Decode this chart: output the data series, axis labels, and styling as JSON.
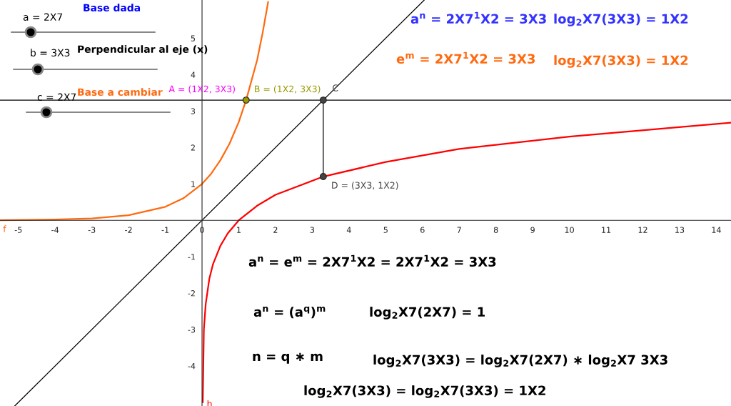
{
  "chart_data": {
    "type": "line",
    "xlim": [
      -5.5,
      14.4
    ],
    "ylim": [
      -5.1,
      6.05
    ],
    "xticks": [
      -5,
      -4,
      -3,
      -2,
      -1,
      0,
      1,
      2,
      3,
      4,
      5,
      6,
      7,
      8,
      9,
      10,
      11,
      12,
      13,
      14
    ],
    "yticks": [
      -4,
      -3,
      -2,
      -1,
      1,
      2,
      3,
      4,
      5
    ],
    "grid": false,
    "legend": false,
    "marker": "none",
    "ref_lines": [
      {
        "axis": "y",
        "value": 3.3,
        "color": "#000000"
      }
    ],
    "series": [
      {
        "color": "#ff6a10",
        "x": [
          -5.5,
          -4,
          -3,
          -2,
          -1,
          -0.5,
          0,
          0.25,
          0.5,
          0.75,
          1,
          1.2,
          1.5,
          1.65,
          1.8
        ],
        "values": [
          0.0,
          0.02,
          0.05,
          0.14,
          0.37,
          0.61,
          1,
          1.28,
          1.65,
          2.11,
          2.7,
          3.3,
          4.4,
          5.15,
          6.0
        ]
      },
      {
        "color": "#ff0000",
        "x": [
          0.02,
          0.05,
          0.1,
          0.2,
          0.3,
          0.5,
          0.7,
          1,
          1.5,
          2,
          3.3,
          5,
          7,
          10,
          14.4
        ],
        "values": [
          -5.0,
          -3.0,
          -2.3,
          -1.6,
          -1.2,
          -0.7,
          -0.36,
          0,
          0.4,
          0.7,
          1.2,
          1.6,
          1.96,
          2.3,
          2.68
        ]
      },
      {
        "color": "#000000",
        "x": [
          -5.1,
          6.05
        ],
        "values": [
          -5.1,
          6.05
        ]
      },
      {
        "color": "#000000",
        "x": [
          3.3,
          3.3
        ],
        "values": [
          1.2,
          3.3
        ]
      },
      {
        "type": "scatter",
        "marker": "circle",
        "colors": [
          "#999900",
          "#444444",
          "#444444"
        ],
        "x": [
          1.2,
          3.3,
          3.3
        ],
        "values": [
          3.3,
          3.3,
          1.2
        ]
      }
    ],
    "annotations": [
      "Base dada",
      "a = 2X7",
      "b = 3X3",
      "Perpendicular al eje (x)",
      "c = 2X7",
      "Base a cambiar",
      "a$^{n}$ = 2X7$^{1}$X2 = 3X3",
      "log$_{2}$X7(3X3) = 1X2",
      "e$^{m}$ = 2X7$^{1}$X2 = 3X3",
      "log$_{2}$X7(3X3) = 1X2",
      "a$^{n}$ = e$^{m}$ = 2X7$^{1}$X2 = 2X7$^{1}$X2 = 3X3",
      "a$^{n}$ = (a$^{q}$)$^{m}$",
      "log$_{2}$X7(2X7) = 1",
      "n = q ∗ m",
      "log$_{2}$X7(3X3) = log$_{2}$X7(2X7) ∗ log$_{2}$X7 3X3",
      "log$_{2}$X7(3X3) = log$_{2}$X7(3X3) = 1X2",
      {
        "text": "A = (1X2, 3X3)",
        "x": 1.2,
        "y": 3.3
      },
      {
        "text": "B = (1X2, 3X3)",
        "x": 1.2,
        "y": 3.3
      },
      {
        "text": "C",
        "x": 3.3,
        "y": 3.3
      },
      {
        "text": "D = (3X3, 1X2)",
        "x": 3.3,
        "y": 1.2
      },
      {
        "text": "f",
        "x": -5.5,
        "y": 0
      },
      {
        "text": "h",
        "x": 0.02,
        "y": -4.8
      }
    ]
  }
}
